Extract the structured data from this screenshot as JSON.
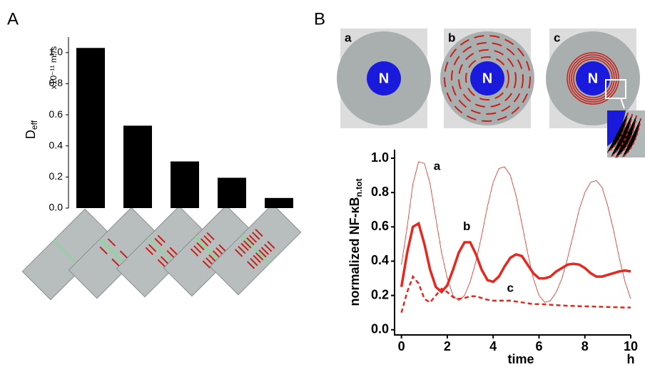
{
  "figure": {
    "panel_labels": [
      "A",
      "B"
    ],
    "cells": [
      {
        "label": "a",
        "nucleus": "N"
      },
      {
        "label": "b",
        "nucleus": "N"
      },
      {
        "label": "c",
        "nucleus": "N"
      }
    ]
  },
  "chart_data": [
    {
      "type": "bar",
      "ylabel": "D",
      "ylabel_sub": "eff",
      "y_unit": "x10⁻¹¹ m²/s",
      "categories": [
        null,
        null,
        null,
        null,
        null
      ],
      "values": [
        1.03,
        0.53,
        0.3,
        0.195,
        0.065
      ],
      "color": "#000000",
      "ylim": [
        0,
        1.1
      ],
      "yticks": [
        {
          "value": 0,
          "label": "0.0"
        },
        0.2,
        0.4,
        0.6,
        0.8,
        {
          "value": 1,
          "label": "1.0"
        }
      ]
    },
    {
      "type": "line",
      "ylabel": "normalized NF-κB",
      "ylabel_sub": "n.tot",
      "xlabel": "time",
      "x_unit": "h",
      "x": [
        0,
        0.25,
        0.5,
        0.75,
        1,
        1.25,
        1.5,
        1.75,
        2,
        2.25,
        2.5,
        2.75,
        3,
        3.25,
        3.5,
        3.75,
        4,
        4.25,
        4.5,
        4.75,
        5,
        5.25,
        5.5,
        5.75,
        6,
        6.25,
        6.5,
        6.75,
        7,
        7.25,
        7.5,
        7.75,
        8,
        8.25,
        8.5,
        8.75,
        9,
        9.25,
        9.5,
        9.75,
        10
      ],
      "series": [
        {
          "name": "a",
          "color": "#e8281e",
          "style": "thin",
          "values": [
            0.38,
            0.6,
            0.85,
            0.98,
            0.97,
            0.85,
            0.65,
            0.45,
            0.3,
            0.2,
            0.17,
            0.2,
            0.28,
            0.4,
            0.55,
            0.72,
            0.86,
            0.94,
            0.95,
            0.9,
            0.78,
            0.62,
            0.45,
            0.3,
            0.2,
            0.16,
            0.17,
            0.22,
            0.3,
            0.42,
            0.56,
            0.7,
            0.8,
            0.86,
            0.87,
            0.83,
            0.72,
            0.58,
            0.42,
            0.28,
            0.18
          ]
        },
        {
          "name": "b",
          "color": "#e8281e",
          "style": "thick",
          "values": [
            0.25,
            0.45,
            0.6,
            0.62,
            0.5,
            0.35,
            0.25,
            0.22,
            0.26,
            0.35,
            0.45,
            0.51,
            0.51,
            0.44,
            0.35,
            0.29,
            0.28,
            0.31,
            0.37,
            0.42,
            0.44,
            0.43,
            0.38,
            0.33,
            0.3,
            0.3,
            0.31,
            0.34,
            0.36,
            0.38,
            0.385,
            0.38,
            0.36,
            0.33,
            0.31,
            0.31,
            0.32,
            0.33,
            0.34,
            0.345,
            0.34
          ]
        },
        {
          "name": "c",
          "color": "#e8281e",
          "style": "dashed",
          "values": [
            0.1,
            0.22,
            0.31,
            0.27,
            0.18,
            0.16,
            0.2,
            0.24,
            0.22,
            0.19,
            0.18,
            0.185,
            0.195,
            0.195,
            0.185,
            0.175,
            0.17,
            0.17,
            0.17,
            0.17,
            0.165,
            0.16,
            0.155,
            0.15,
            0.15,
            0.148,
            0.146,
            0.144,
            0.142,
            0.14,
            0.139,
            0.138,
            0.137,
            0.136,
            0.135,
            0.134,
            0.133,
            0.132,
            0.131,
            0.13,
            0.13
          ]
        }
      ],
      "xlim": [
        -0.3,
        10
      ],
      "xticks": [
        0,
        2,
        4,
        6,
        8,
        10
      ],
      "ylim": [
        -0.03,
        1.05
      ],
      "yticks": [
        {
          "value": 0,
          "label": "0.0"
        },
        0.2,
        0.4,
        0.6,
        0.8,
        {
          "value": 1,
          "label": "1.0"
        }
      ]
    }
  ]
}
